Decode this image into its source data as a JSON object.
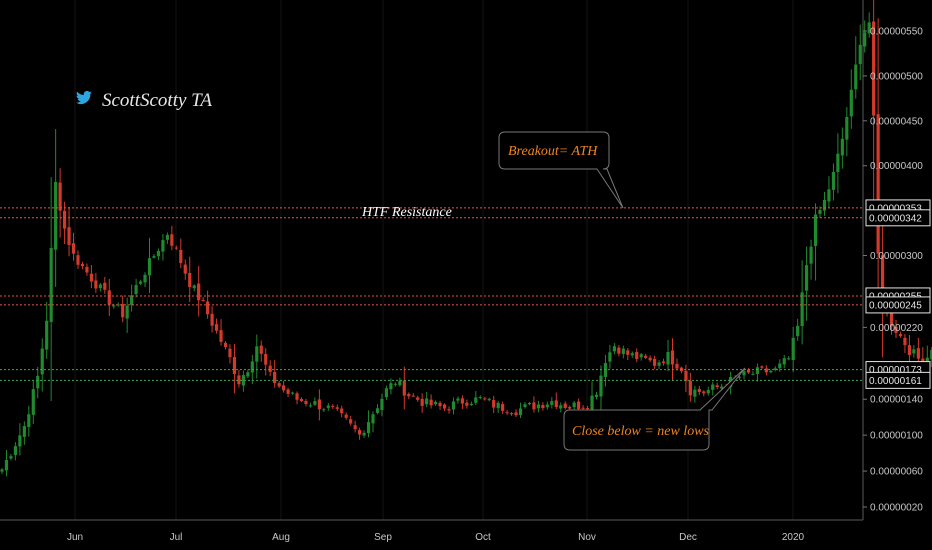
{
  "watermark": {
    "text": "ScottScotty TA",
    "icon": "twitter-bird-icon",
    "icon_color": "#2ca5e0"
  },
  "chart_data": {
    "type": "candlestick",
    "x_tick_labels": [
      "Jun",
      "Jul",
      "Aug",
      "Sep",
      "Oct",
      "Nov",
      "Dec",
      "2020"
    ],
    "y_ticks": [
      2e-07,
      6e-07,
      1e-06,
      1.4e-06,
      2.2e-06,
      3e-06,
      4e-06,
      4.5e-06,
      5e-06,
      5.5e-06
    ],
    "y_tick_labels": [
      "0.00000020",
      "0.00000060",
      "0.00000100",
      "0.00000140",
      "0.00000220",
      "0.00000300",
      "0.00000400",
      "0.00000450",
      "0.00000500",
      "0.00000550"
    ],
    "ylim": [
      1e-07,
      5.8e-06
    ],
    "price_levels": [
      {
        "value": 3.53e-06,
        "label": "0.00000353",
        "color": "#e25b3c"
      },
      {
        "value": 3.42e-06,
        "label": "0.00000342",
        "color": "#e25b3c"
      },
      {
        "value": 2.55e-06,
        "label": "0.00000255",
        "color": "#e25b3c"
      },
      {
        "value": 2.45e-06,
        "label": "0.00000245",
        "color": "#e25b3c"
      },
      {
        "value": 1.73e-06,
        "label": "0.00000173",
        "color": "#3ea84a"
      },
      {
        "value": 1.61e-06,
        "label": "0.00000161",
        "color": "#3ea84a"
      }
    ],
    "annotations": {
      "resistance": {
        "text": "HTF Resistance",
        "color": "#ffffff"
      },
      "breakout": {
        "text": "Breakout= ATH",
        "color": "#f0851c"
      },
      "close_below": {
        "text": "Close below = new lows",
        "color": "#f0851c"
      }
    },
    "up_color": "#1f8a2e",
    "down_color": "#d23a2c",
    "price_path": [
      [
        0,
        6.2e-07
      ],
      [
        5,
        1.1e-06
      ],
      [
        8,
        1.65e-06
      ],
      [
        10,
        2.3e-06
      ],
      [
        12,
        3.8e-06
      ],
      [
        14,
        3.3e-06
      ],
      [
        16,
        3e-06
      ],
      [
        20,
        2.75e-06
      ],
      [
        24,
        2.5e-06
      ],
      [
        27,
        2.35e-06
      ],
      [
        30,
        2.65e-06
      ],
      [
        34,
        3e-06
      ],
      [
        37,
        3.25e-06
      ],
      [
        39,
        3.05e-06
      ],
      [
        42,
        2.7e-06
      ],
      [
        45,
        2.45e-06
      ],
      [
        48,
        2.15e-06
      ],
      [
        51,
        1.85e-06
      ],
      [
        53,
        1.6e-06
      ],
      [
        55,
        1.75e-06
      ],
      [
        57,
        2e-06
      ],
      [
        60,
        1.65e-06
      ],
      [
        63,
        1.5e-06
      ],
      [
        66,
        1.4e-06
      ],
      [
        70,
        1.35e-06
      ],
      [
        74,
        1.28e-06
      ],
      [
        77,
        1.15e-06
      ],
      [
        80,
        1e-06
      ],
      [
        83,
        1.25e-06
      ],
      [
        86,
        1.5e-06
      ],
      [
        88,
        1.6e-06
      ],
      [
        91,
        1.45e-06
      ],
      [
        95,
        1.35e-06
      ],
      [
        99,
        1.3e-06
      ],
      [
        103,
        1.38e-06
      ],
      [
        107,
        1.4e-06
      ],
      [
        111,
        1.32e-06
      ],
      [
        115,
        1.28e-06
      ],
      [
        119,
        1.33e-06
      ],
      [
        123,
        1.38e-06
      ],
      [
        127,
        1.32e-06
      ],
      [
        131,
        1.35e-06
      ],
      [
        133,
        1.5e-06
      ],
      [
        135,
        1.85e-06
      ],
      [
        137,
        2e-06
      ],
      [
        140,
        1.9e-06
      ],
      [
        143,
        1.85e-06
      ],
      [
        146,
        1.8e-06
      ],
      [
        149,
        1.88e-06
      ],
      [
        152,
        1.75e-06
      ],
      [
        154,
        1.5e-06
      ],
      [
        157,
        1.48e-06
      ],
      [
        161,
        1.55e-06
      ],
      [
        165,
        1.65e-06
      ],
      [
        169,
        1.7e-06
      ],
      [
        173,
        1.72e-06
      ],
      [
        176,
        1.85e-06
      ],
      [
        178,
        2.2e-06
      ],
      [
        180,
        2.9e-06
      ],
      [
        182,
        3.4e-06
      ],
      [
        184,
        3.6e-06
      ],
      [
        186,
        3.9e-06
      ],
      [
        188,
        4.3e-06
      ],
      [
        190,
        4.8e-06
      ],
      [
        192,
        5.4e-06
      ],
      [
        194,
        5.6e-06
      ],
      [
        195,
        4.5e-06
      ],
      [
        196,
        3e-06
      ],
      [
        197,
        2.5e-06
      ],
      [
        199,
        2.25e-06
      ],
      [
        201,
        2.1e-06
      ],
      [
        203,
        1.95e-06
      ],
      [
        205,
        1.85e-06
      ],
      [
        206,
        1.8e-06
      ],
      [
        208,
        1.95e-06
      ]
    ]
  }
}
